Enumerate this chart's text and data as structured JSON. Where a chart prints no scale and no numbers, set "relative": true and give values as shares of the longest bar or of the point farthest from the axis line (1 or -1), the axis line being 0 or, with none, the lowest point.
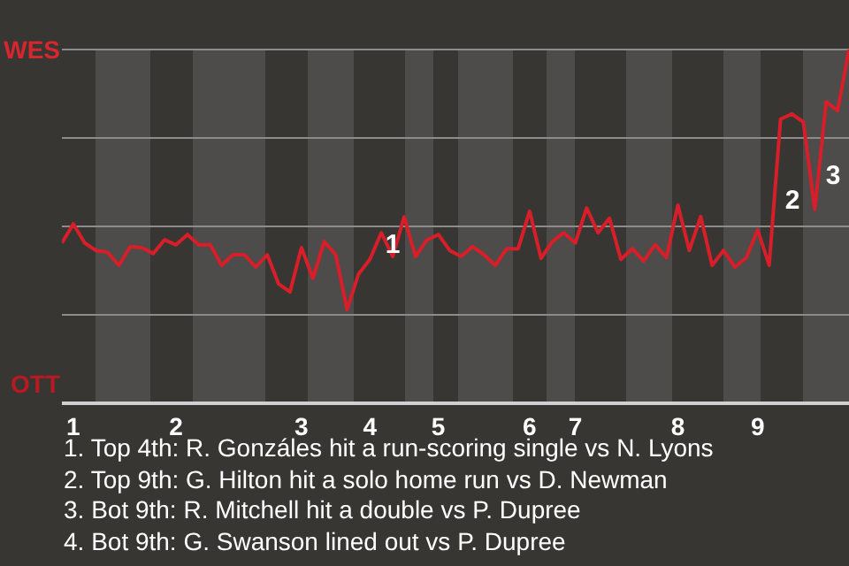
{
  "chart_data": {
    "type": "line",
    "relative": true,
    "categories": [
      null,
      "1",
      null,
      null,
      null,
      null,
      null,
      null,
      null,
      null,
      "2",
      null,
      null,
      null,
      null,
      null,
      null,
      null,
      null,
      null,
      null,
      "3",
      null,
      null,
      null,
      null,
      null,
      "4",
      null,
      null,
      null,
      null,
      null,
      "5",
      null,
      null,
      null,
      null,
      null,
      null,
      null,
      "6",
      null,
      null,
      null,
      "7",
      null,
      null,
      null,
      null,
      null,
      null,
      null,
      null,
      "8",
      null,
      null,
      null,
      null,
      null,
      null,
      "9",
      null,
      null,
      null,
      null,
      null,
      null,
      null,
      null
    ],
    "series": [
      {
        "color": "#d81e28",
        "values": [
          0.453,
          0.507,
          0.453,
          0.432,
          0.427,
          0.39,
          0.443,
          0.44,
          0.423,
          0.462,
          0.448,
          0.477,
          0.448,
          0.448,
          0.39,
          0.42,
          0.42,
          0.385,
          0.42,
          0.337,
          0.315,
          0.44,
          0.353,
          0.457,
          0.42,
          0.265,
          0.365,
          0.407,
          0.482,
          0.415,
          0.527,
          0.415,
          0.462,
          0.477,
          0.432,
          0.415,
          0.443,
          0.42,
          0.39,
          0.437,
          0.437,
          0.543,
          0.41,
          0.457,
          0.482,
          0.453,
          0.552,
          0.482,
          0.523,
          0.407,
          0.437,
          0.402,
          0.448,
          0.412,
          0.56,
          0.432,
          0.528,
          0.39,
          0.432,
          0.385,
          0.412,
          0.49,
          0.39,
          0.803,
          0.818,
          0.795,
          0.548,
          0.852,
          0.827,
          1
        ]
      }
    ],
    "grid": "y",
    "annotations": [
      "WES",
      "OTT",
      "1",
      "2",
      "3",
      "1. Top 4th: R. Gonzáles hit a run-scoring single vs N. Lyons",
      "2. Top 9th: G. Hilton hit a solo home run vs D. Newman",
      "3. Bot 9th: R. Mitchell hit a double vs P. Dupree",
      "4. Bot 9th: G. Swanson lined out vs P. Dupree"
    ]
  }
}
